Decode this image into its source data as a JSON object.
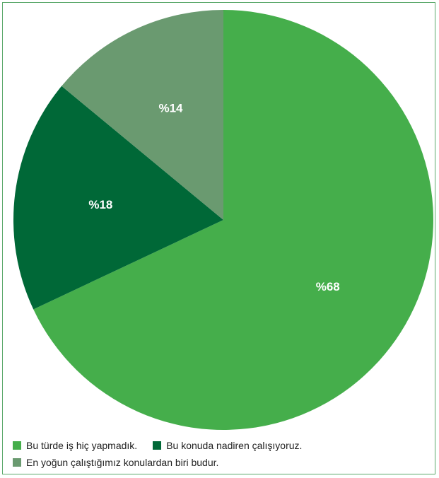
{
  "chart_data": {
    "type": "pie",
    "slices": [
      {
        "label": "Bu türde iş hiç yapmadık.",
        "value": 68,
        "display": "%68",
        "color": "#45ae4b"
      },
      {
        "label": "Bu konuda nadiren çalışıyoruz.",
        "value": 18,
        "display": "%18",
        "color": "#006837"
      },
      {
        "label": "En yoğun çalıştığımız konulardan biri budur.",
        "value": 14,
        "display": "%14",
        "color": "#6a9a70"
      }
    ],
    "legend_position": "bottom"
  }
}
